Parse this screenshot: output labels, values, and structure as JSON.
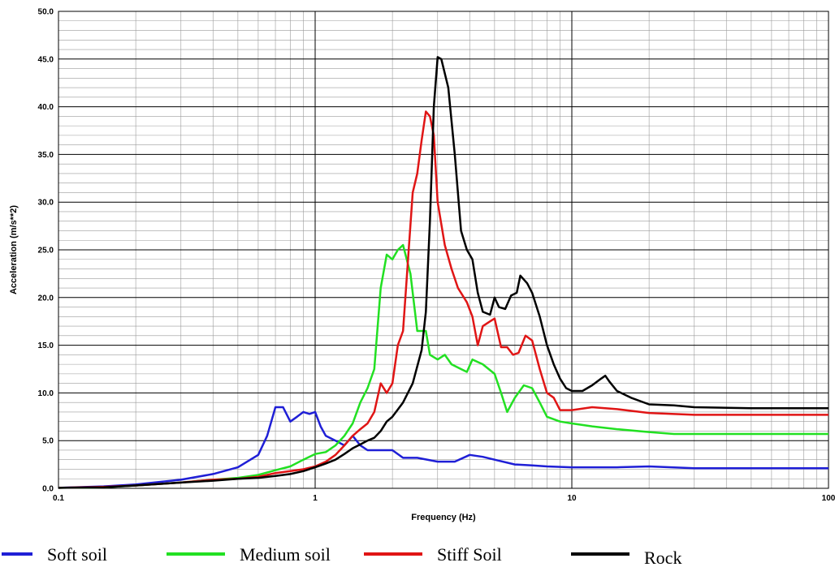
{
  "chart_data": {
    "type": "line",
    "xlabel": "Frequency (Hz)",
    "ylabel": "Acceleration  (m/s**2)",
    "x_scale": "log",
    "xlim": [
      0.1,
      100
    ],
    "ylim": [
      0,
      50
    ],
    "x_ticks": [
      0.1,
      1,
      10,
      100
    ],
    "x_tick_labels": [
      "0.1",
      "1",
      "10",
      "100"
    ],
    "y_ticks": [
      0,
      5,
      10,
      15,
      20,
      25,
      30,
      35,
      40,
      45,
      50
    ],
    "y_tick_labels": [
      "0.0",
      "5.0",
      "10.0",
      "15.0",
      "20.0",
      "25.0",
      "30.0",
      "35.0",
      "40.0",
      "45.0",
      "50.0"
    ],
    "grid": true,
    "legend_position": "bottom",
    "series": [
      {
        "name": "Soft soil",
        "color": "#1f1fd6",
        "points": [
          [
            0.1,
            0.05
          ],
          [
            0.15,
            0.2
          ],
          [
            0.2,
            0.4
          ],
          [
            0.3,
            0.9
          ],
          [
            0.4,
            1.5
          ],
          [
            0.5,
            2.2
          ],
          [
            0.6,
            3.5
          ],
          [
            0.65,
            5.5
          ],
          [
            0.7,
            8.5
          ],
          [
            0.75,
            8.5
          ],
          [
            0.8,
            7.0
          ],
          [
            0.85,
            7.5
          ],
          [
            0.9,
            8.0
          ],
          [
            0.95,
            7.8
          ],
          [
            1.0,
            8.0
          ],
          [
            1.05,
            6.5
          ],
          [
            1.1,
            5.5
          ],
          [
            1.2,
            5.0
          ],
          [
            1.3,
            4.5
          ],
          [
            1.4,
            5.5
          ],
          [
            1.5,
            4.5
          ],
          [
            1.6,
            4.0
          ],
          [
            1.8,
            4.0
          ],
          [
            2.0,
            4.0
          ],
          [
            2.2,
            3.2
          ],
          [
            2.5,
            3.2
          ],
          [
            3.0,
            2.8
          ],
          [
            3.5,
            2.8
          ],
          [
            4.0,
            3.5
          ],
          [
            4.5,
            3.3
          ],
          [
            5.0,
            3.0
          ],
          [
            6.0,
            2.5
          ],
          [
            7.0,
            2.4
          ],
          [
            8.0,
            2.3
          ],
          [
            10.0,
            2.2
          ],
          [
            15.0,
            2.2
          ],
          [
            20.0,
            2.3
          ],
          [
            30.0,
            2.1
          ],
          [
            50.0,
            2.1
          ],
          [
            100.0,
            2.1
          ]
        ]
      },
      {
        "name": "Medium soil",
        "color": "#22e022",
        "points": [
          [
            0.1,
            0.05
          ],
          [
            0.15,
            0.1
          ],
          [
            0.2,
            0.3
          ],
          [
            0.3,
            0.6
          ],
          [
            0.4,
            0.9
          ],
          [
            0.5,
            1.1
          ],
          [
            0.6,
            1.4
          ],
          [
            0.7,
            1.9
          ],
          [
            0.8,
            2.3
          ],
          [
            0.9,
            3.0
          ],
          [
            1.0,
            3.6
          ],
          [
            1.1,
            3.8
          ],
          [
            1.2,
            4.5
          ],
          [
            1.3,
            5.5
          ],
          [
            1.4,
            6.8
          ],
          [
            1.5,
            9.0
          ],
          [
            1.6,
            10.5
          ],
          [
            1.7,
            12.5
          ],
          [
            1.8,
            21.0
          ],
          [
            1.9,
            24.5
          ],
          [
            2.0,
            24.0
          ],
          [
            2.1,
            25.0
          ],
          [
            2.2,
            25.5
          ],
          [
            2.35,
            22.5
          ],
          [
            2.5,
            16.5
          ],
          [
            2.7,
            16.5
          ],
          [
            2.8,
            14.0
          ],
          [
            3.0,
            13.5
          ],
          [
            3.2,
            14.0
          ],
          [
            3.4,
            13.0
          ],
          [
            3.7,
            12.5
          ],
          [
            3.9,
            12.2
          ],
          [
            4.1,
            13.5
          ],
          [
            4.5,
            13.0
          ],
          [
            5.0,
            12.0
          ],
          [
            5.3,
            10.0
          ],
          [
            5.6,
            8.0
          ],
          [
            6.0,
            9.5
          ],
          [
            6.5,
            10.8
          ],
          [
            7.0,
            10.5
          ],
          [
            7.5,
            9.0
          ],
          [
            8.0,
            7.5
          ],
          [
            9.0,
            7.0
          ],
          [
            10.0,
            6.8
          ],
          [
            12.0,
            6.5
          ],
          [
            15.0,
            6.2
          ],
          [
            20.0,
            5.9
          ],
          [
            25.0,
            5.7
          ],
          [
            50.0,
            5.7
          ],
          [
            100.0,
            5.7
          ]
        ]
      },
      {
        "name": "Stiff Soil",
        "color": "#e01515",
        "points": [
          [
            0.1,
            0.05
          ],
          [
            0.15,
            0.15
          ],
          [
            0.2,
            0.3
          ],
          [
            0.3,
            0.6
          ],
          [
            0.4,
            0.9
          ],
          [
            0.5,
            1.0
          ],
          [
            0.6,
            1.2
          ],
          [
            0.7,
            1.6
          ],
          [
            0.8,
            1.8
          ],
          [
            0.9,
            2.0
          ],
          [
            1.0,
            2.3
          ],
          [
            1.1,
            2.8
          ],
          [
            1.2,
            3.5
          ],
          [
            1.3,
            4.5
          ],
          [
            1.4,
            5.5
          ],
          [
            1.5,
            6.2
          ],
          [
            1.6,
            6.8
          ],
          [
            1.7,
            8.0
          ],
          [
            1.8,
            11.0
          ],
          [
            1.9,
            10.0
          ],
          [
            2.0,
            11.0
          ],
          [
            2.1,
            15.0
          ],
          [
            2.2,
            16.5
          ],
          [
            2.4,
            31.0
          ],
          [
            2.5,
            33.0
          ],
          [
            2.6,
            36.5
          ],
          [
            2.7,
            39.5
          ],
          [
            2.8,
            39.0
          ],
          [
            2.9,
            37.0
          ],
          [
            3.0,
            30.0
          ],
          [
            3.2,
            25.5
          ],
          [
            3.4,
            23.0
          ],
          [
            3.6,
            21.0
          ],
          [
            3.9,
            19.5
          ],
          [
            4.1,
            18.0
          ],
          [
            4.3,
            15.0
          ],
          [
            4.5,
            17.0
          ],
          [
            4.8,
            17.5
          ],
          [
            5.0,
            17.8
          ],
          [
            5.3,
            14.8
          ],
          [
            5.6,
            14.8
          ],
          [
            5.9,
            14.0
          ],
          [
            6.2,
            14.2
          ],
          [
            6.6,
            16.0
          ],
          [
            7.0,
            15.5
          ],
          [
            7.5,
            12.5
          ],
          [
            8.0,
            10.0
          ],
          [
            8.5,
            9.5
          ],
          [
            9.0,
            8.2
          ],
          [
            10.0,
            8.2
          ],
          [
            12.0,
            8.5
          ],
          [
            15.0,
            8.3
          ],
          [
            20.0,
            7.9
          ],
          [
            30.0,
            7.7
          ],
          [
            50.0,
            7.7
          ],
          [
            100.0,
            7.7
          ]
        ]
      },
      {
        "name": "Rock",
        "color": "#000000",
        "points": [
          [
            0.1,
            0.05
          ],
          [
            0.15,
            0.1
          ],
          [
            0.2,
            0.3
          ],
          [
            0.3,
            0.6
          ],
          [
            0.4,
            0.8
          ],
          [
            0.5,
            1.0
          ],
          [
            0.6,
            1.1
          ],
          [
            0.7,
            1.3
          ],
          [
            0.8,
            1.5
          ],
          [
            0.9,
            1.8
          ],
          [
            1.0,
            2.2
          ],
          [
            1.1,
            2.6
          ],
          [
            1.2,
            3.0
          ],
          [
            1.3,
            3.6
          ],
          [
            1.4,
            4.2
          ],
          [
            1.5,
            4.6
          ],
          [
            1.6,
            5.0
          ],
          [
            1.7,
            5.3
          ],
          [
            1.8,
            6.0
          ],
          [
            1.9,
            7.0
          ],
          [
            2.0,
            7.5
          ],
          [
            2.2,
            9.0
          ],
          [
            2.4,
            11.0
          ],
          [
            2.6,
            14.5
          ],
          [
            2.7,
            18.5
          ],
          [
            2.8,
            28.0
          ],
          [
            2.9,
            40.0
          ],
          [
            3.0,
            45.2
          ],
          [
            3.1,
            45.0
          ],
          [
            3.3,
            42.0
          ],
          [
            3.5,
            35.0
          ],
          [
            3.7,
            27.0
          ],
          [
            3.9,
            25.0
          ],
          [
            4.1,
            24.0
          ],
          [
            4.3,
            20.5
          ],
          [
            4.5,
            18.5
          ],
          [
            4.8,
            18.2
          ],
          [
            5.0,
            20.0
          ],
          [
            5.2,
            19.0
          ],
          [
            5.5,
            18.8
          ],
          [
            5.8,
            20.2
          ],
          [
            6.1,
            20.5
          ],
          [
            6.3,
            22.3
          ],
          [
            6.7,
            21.5
          ],
          [
            7.0,
            20.5
          ],
          [
            7.5,
            18.0
          ],
          [
            8.0,
            15.0
          ],
          [
            8.5,
            13.0
          ],
          [
            9.0,
            11.5
          ],
          [
            9.5,
            10.5
          ],
          [
            10.0,
            10.2
          ],
          [
            11.0,
            10.2
          ],
          [
            12.0,
            10.8
          ],
          [
            13.0,
            11.5
          ],
          [
            13.5,
            11.8
          ],
          [
            14.0,
            11.2
          ],
          [
            15.0,
            10.2
          ],
          [
            17.0,
            9.5
          ],
          [
            20.0,
            8.8
          ],
          [
            25.0,
            8.7
          ],
          [
            30.0,
            8.5
          ],
          [
            50.0,
            8.4
          ],
          [
            100.0,
            8.4
          ]
        ]
      }
    ]
  }
}
